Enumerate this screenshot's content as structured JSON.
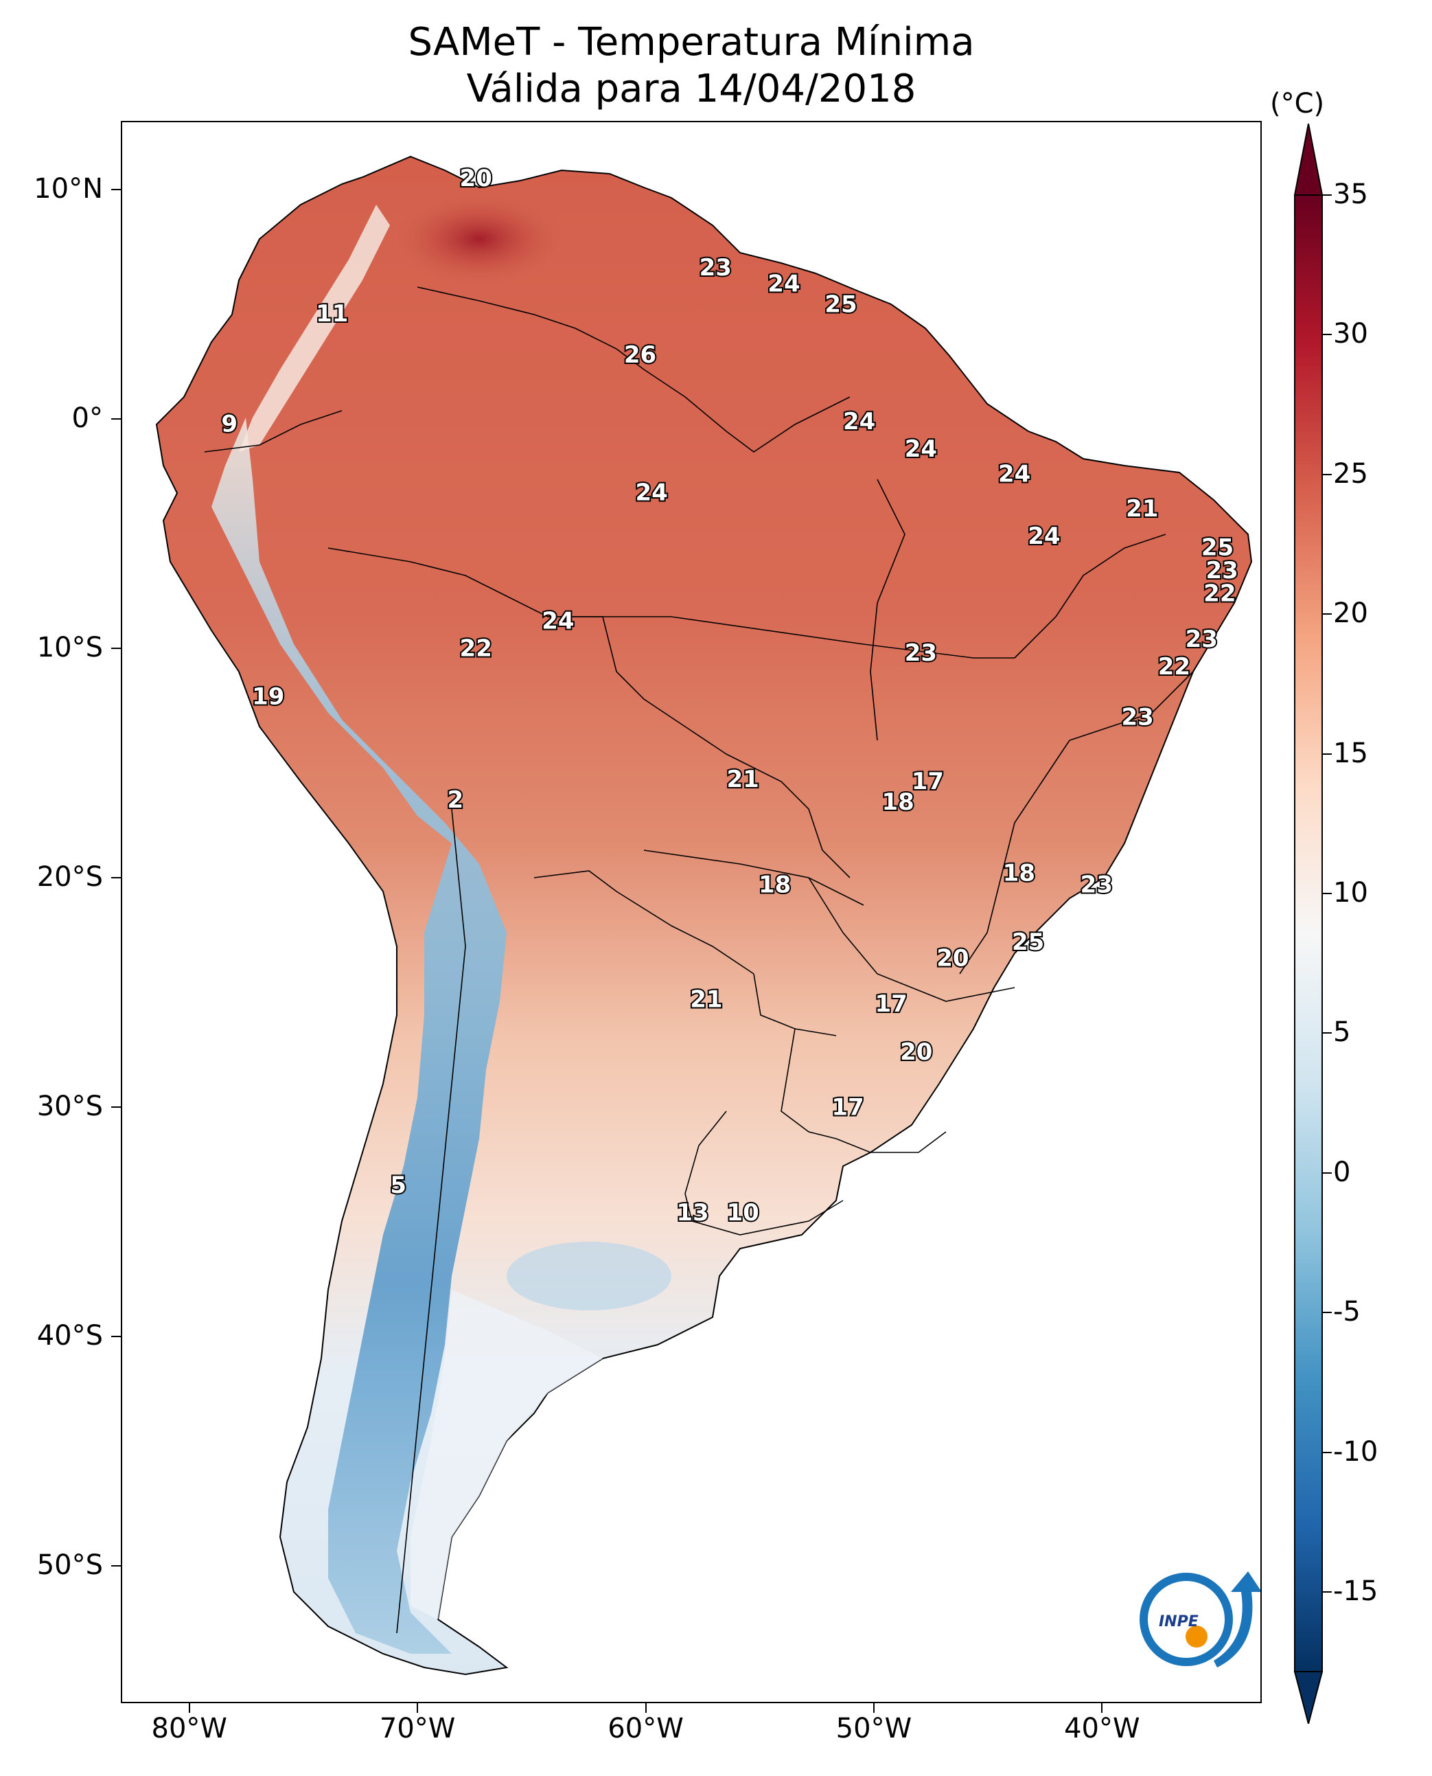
{
  "title": {
    "line1": "SAMeT - Temperatura Mínima",
    "line2": "Válida para 14/04/2018"
  },
  "axes": {
    "y_ticks": [
      {
        "label": "10°N",
        "lat": 10
      },
      {
        "label": "0°",
        "lat": 0
      },
      {
        "label": "10°S",
        "lat": -10
      },
      {
        "label": "20°S",
        "lat": -20
      },
      {
        "label": "30°S",
        "lat": -30
      },
      {
        "label": "40°S",
        "lat": -40
      },
      {
        "label": "50°S",
        "lat": -50
      }
    ],
    "x_ticks": [
      {
        "label": "80°W",
        "lon": -80
      },
      {
        "label": "70°W",
        "lon": -70
      },
      {
        "label": "60°W",
        "lon": -60
      },
      {
        "label": "50°W",
        "lon": -50
      },
      {
        "label": "40°W",
        "lon": -40
      }
    ],
    "lon_range": [
      -83,
      -33
    ],
    "lat_range": [
      -56,
      13
    ]
  },
  "colorbar": {
    "unit": "(°C)",
    "range": [
      -15,
      35
    ],
    "ticks": [
      {
        "label": "35",
        "value": 35
      },
      {
        "label": "30",
        "value": 30
      },
      {
        "label": "25",
        "value": 25
      },
      {
        "label": "20",
        "value": 20
      },
      {
        "label": "15",
        "value": 15
      },
      {
        "label": "10",
        "value": 10
      },
      {
        "label": "5",
        "value": 5
      },
      {
        "label": "0",
        "value": 0
      },
      {
        "label": "-5",
        "value": -5
      },
      {
        "label": "-10",
        "value": -10
      },
      {
        "label": "-15",
        "value": -15
      }
    ],
    "colors": [
      "#053061",
      "#2166ac",
      "#4393c3",
      "#92c5de",
      "#d1e5f0",
      "#f7f7f7",
      "#fddbc7",
      "#f4a582",
      "#d6604d",
      "#b2182b",
      "#67001f"
    ]
  },
  "labels": [
    {
      "text": "20",
      "lon": -67.5,
      "lat": 10.5
    },
    {
      "text": "23",
      "lon": -57.0,
      "lat": 6.6
    },
    {
      "text": "24",
      "lon": -54.0,
      "lat": 5.9
    },
    {
      "text": "25",
      "lon": -51.5,
      "lat": 5.0
    },
    {
      "text": "11",
      "lon": -73.8,
      "lat": 4.6
    },
    {
      "text": "26",
      "lon": -60.3,
      "lat": 2.8
    },
    {
      "text": "9",
      "lon": -78.3,
      "lat": -0.2
    },
    {
      "text": "24",
      "lon": -50.7,
      "lat": -0.1
    },
    {
      "text": "24",
      "lon": -48.0,
      "lat": -1.3
    },
    {
      "text": "24",
      "lon": -43.9,
      "lat": -2.4
    },
    {
      "text": "24",
      "lon": -59.8,
      "lat": -3.2
    },
    {
      "text": "21",
      "lon": -38.3,
      "lat": -3.9
    },
    {
      "text": "24",
      "lon": -42.6,
      "lat": -5.1
    },
    {
      "text": "25",
      "lon": -35.0,
      "lat": -5.6
    },
    {
      "text": "23",
      "lon": -34.8,
      "lat": -6.6
    },
    {
      "text": "22",
      "lon": -34.9,
      "lat": -7.6
    },
    {
      "text": "24",
      "lon": -63.9,
      "lat": -8.8
    },
    {
      "text": "23",
      "lon": -35.7,
      "lat": -9.6
    },
    {
      "text": "22",
      "lon": -67.5,
      "lat": -10.0
    },
    {
      "text": "23",
      "lon": -48.0,
      "lat": -10.2
    },
    {
      "text": "22",
      "lon": -36.9,
      "lat": -10.8
    },
    {
      "text": "19",
      "lon": -76.6,
      "lat": -12.1
    },
    {
      "text": "23",
      "lon": -38.5,
      "lat": -13.0
    },
    {
      "text": "21",
      "lon": -55.8,
      "lat": -15.7
    },
    {
      "text": "17",
      "lon": -47.7,
      "lat": -15.8
    },
    {
      "text": "18",
      "lon": -49.0,
      "lat": -16.7
    },
    {
      "text": "2",
      "lon": -68.4,
      "lat": -16.6
    },
    {
      "text": "18",
      "lon": -43.7,
      "lat": -19.8
    },
    {
      "text": "18",
      "lon": -54.4,
      "lat": -20.3
    },
    {
      "text": "23",
      "lon": -40.3,
      "lat": -20.3
    },
    {
      "text": "25",
      "lon": -43.3,
      "lat": -22.8
    },
    {
      "text": "20",
      "lon": -46.6,
      "lat": -23.5
    },
    {
      "text": "21",
      "lon": -57.4,
      "lat": -25.3
    },
    {
      "text": "17",
      "lon": -49.3,
      "lat": -25.5
    },
    {
      "text": "20",
      "lon": -48.2,
      "lat": -27.6
    },
    {
      "text": "17",
      "lon": -51.2,
      "lat": -30.0
    },
    {
      "text": "5",
      "lon": -70.9,
      "lat": -33.4
    },
    {
      "text": "13",
      "lon": -58.0,
      "lat": -34.6
    },
    {
      "text": "10",
      "lon": -55.8,
      "lat": -34.6
    }
  ],
  "logo": {
    "text": "INPE"
  }
}
